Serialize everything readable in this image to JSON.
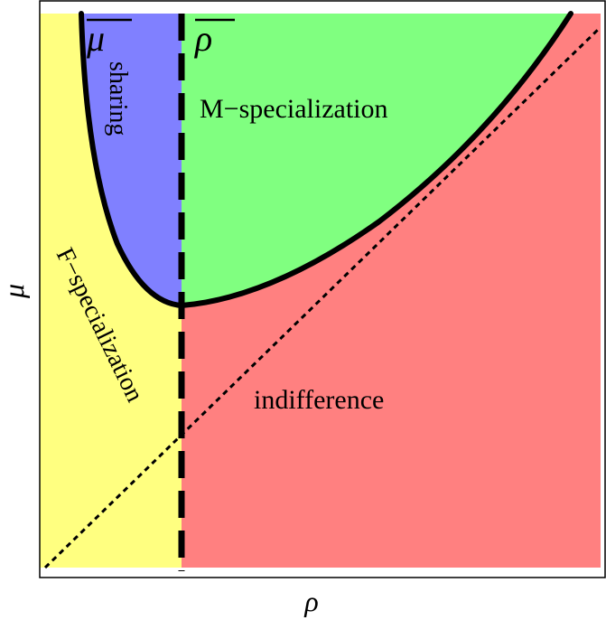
{
  "diagram": {
    "axes": {
      "x_label": "ρ",
      "y_label": "μ"
    },
    "thresholds": {
      "mu_bar": "μ",
      "rho_bar": "ρ"
    },
    "regions": {
      "sharing": "sharing",
      "m_specialization": "M−specialization",
      "f_specialization": "F−specialization",
      "indifference": "indifference"
    },
    "colors": {
      "f_specialization": "#ffff80",
      "sharing": "#8080ff",
      "m_specialization": "#80ff80",
      "indifference": "#ff8080",
      "boundary": "#000000",
      "frame": "#000000"
    }
  }
}
